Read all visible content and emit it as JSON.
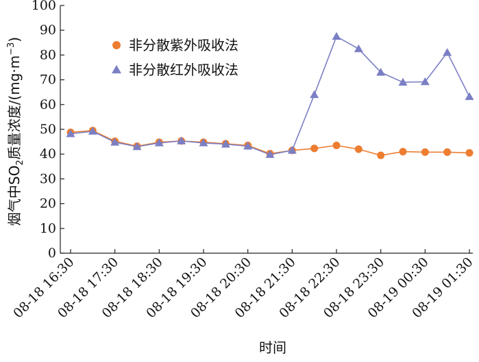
{
  "chart_data": {
    "type": "line",
    "x": [
      "08-18 16:30",
      "08-18 17:00",
      "08-18 17:30",
      "08-18 18:00",
      "08-18 18:30",
      "08-18 19:00",
      "08-18 19:30",
      "08-18 20:00",
      "08-18 20:30",
      "08-18 21:00",
      "08-18 21:30",
      "08-18 22:00",
      "08-18 22:30",
      "08-18 23:00",
      "08-18 23:30",
      "08-19 00:00",
      "08-19 00:30",
      "08-19 01:00",
      "08-19 01:30"
    ],
    "x_tick_labels": [
      "08-18 16:30",
      "08-18 17:30",
      "08-18 18:30",
      "08-18 19:30",
      "08-18 20:30",
      "08-18 21:30",
      "08-18 22:30",
      "08-18 23:30",
      "08-19 00:30",
      "08-19 01:30"
    ],
    "series": [
      {
        "name": "非分散紫外吸收法",
        "color": "#ED7D31",
        "marker": "circle",
        "values": [
          48.8,
          49.5,
          45.2,
          43.2,
          44.8,
          45.3,
          44.8,
          44.2,
          43.5,
          40.2,
          41.5,
          42.3,
          43.5,
          42.0,
          39.5,
          41.0,
          40.8,
          40.8,
          40.5
        ]
      },
      {
        "name": "非分散红外吸收法",
        "color": "#7B7FC4",
        "marker": "triangle",
        "values": [
          48.2,
          49.2,
          44.8,
          43.0,
          44.5,
          45.3,
          44.5,
          44.0,
          43.2,
          39.8,
          41.5,
          64.0,
          87.5,
          82.5,
          73.0,
          69.0,
          69.2,
          81.0,
          63.2
        ]
      }
    ],
    "xlabel": "时间",
    "ylabel_parts": [
      "烟气中SO",
      "2",
      "质量浓度/(mg·m",
      "−3",
      ")"
    ],
    "ylim": [
      0,
      100
    ],
    "yticks": [
      0,
      10,
      20,
      30,
      40,
      50,
      60,
      70,
      80,
      90,
      100
    ],
    "grid": false,
    "legend_position": "top-left"
  }
}
